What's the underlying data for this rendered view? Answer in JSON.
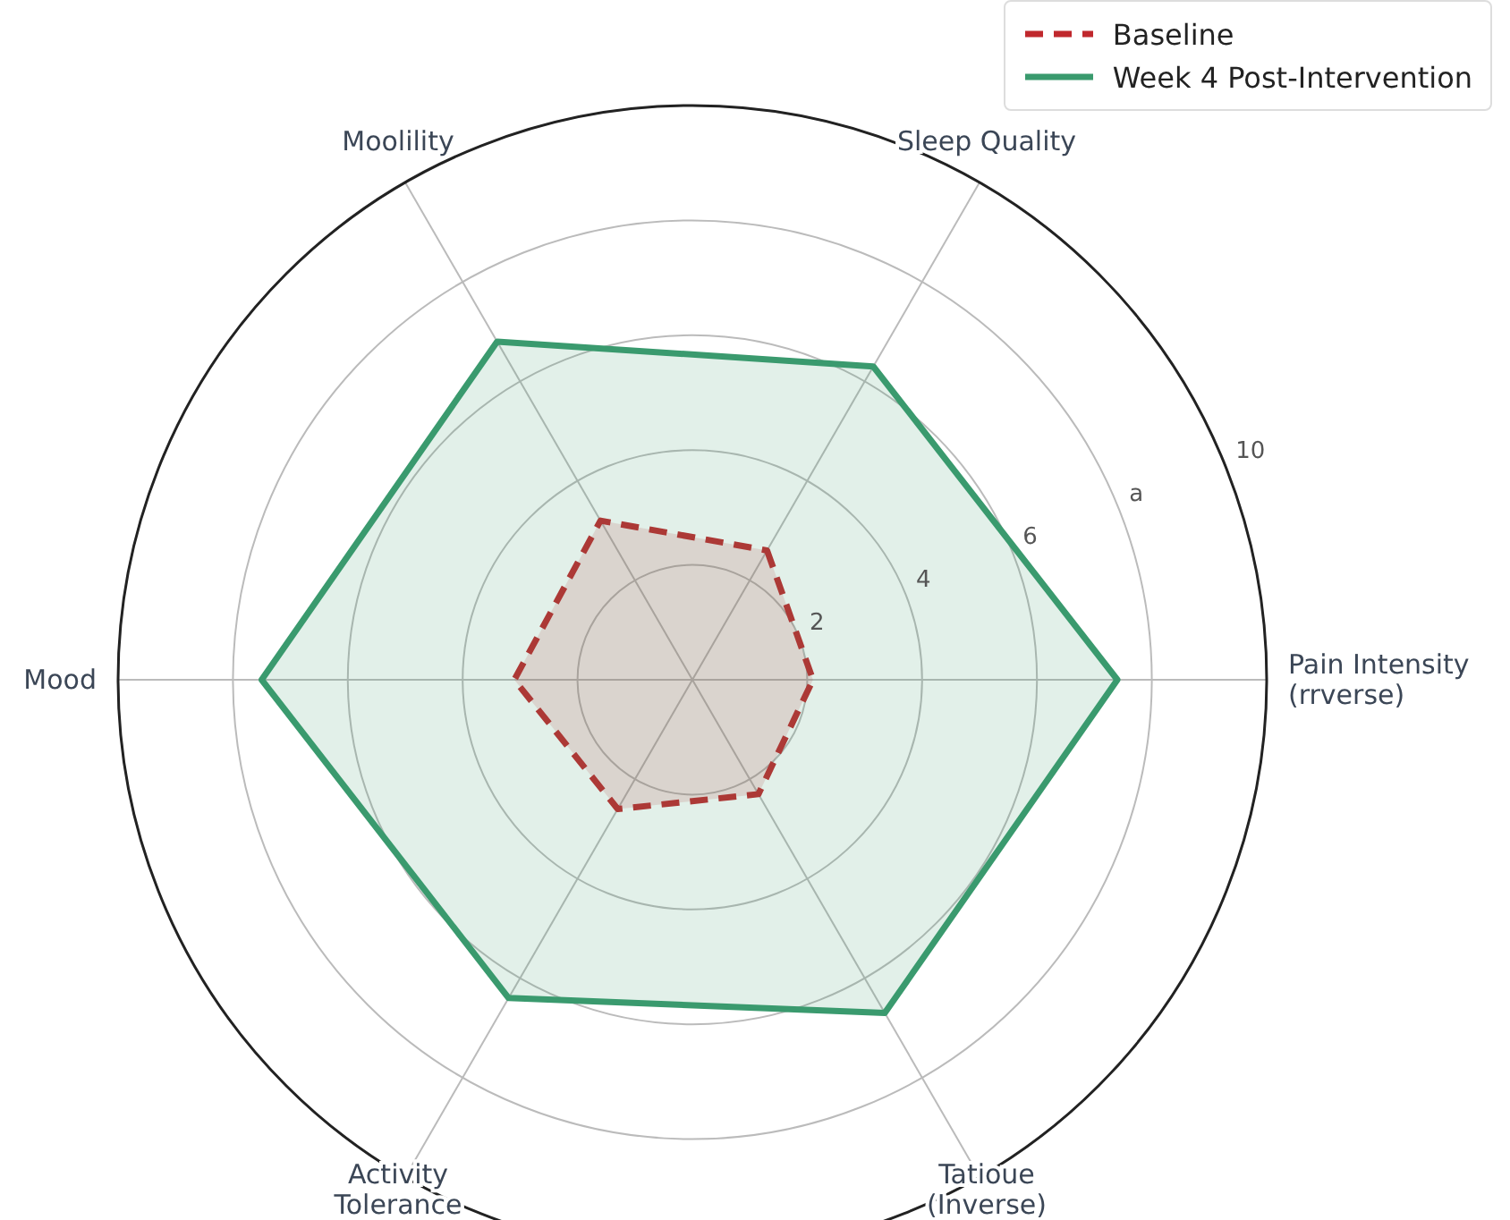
{
  "chart_data": {
    "type": "radar",
    "categories": [
      "Sleep Quality",
      "Pain Intensity\n(rrverse)",
      "Tatioue\n(Inverse)",
      "Activity\nTolerance",
      "Mood",
      "Moolility"
    ],
    "series": [
      {
        "name": "Baseline",
        "color": "#c0282d",
        "line_style": "dashed",
        "values": [
          2.6,
          2.1,
          2.3,
          2.6,
          3.1,
          3.2
        ]
      },
      {
        "name": "Week 4 Post-Intervention",
        "color": "#3a9a6e",
        "line_style": "solid",
        "values": [
          6.3,
          7.4,
          6.7,
          6.4,
          7.5,
          6.8
        ]
      }
    ],
    "ylim": [
      0,
      10
    ],
    "yticks": [
      {
        "value": 2,
        "label": "2"
      },
      4,
      6,
      {
        "value": 8,
        "label": "a"
      },
      10
    ],
    "grid": true,
    "legend": "top right",
    "marker": "none"
  }
}
